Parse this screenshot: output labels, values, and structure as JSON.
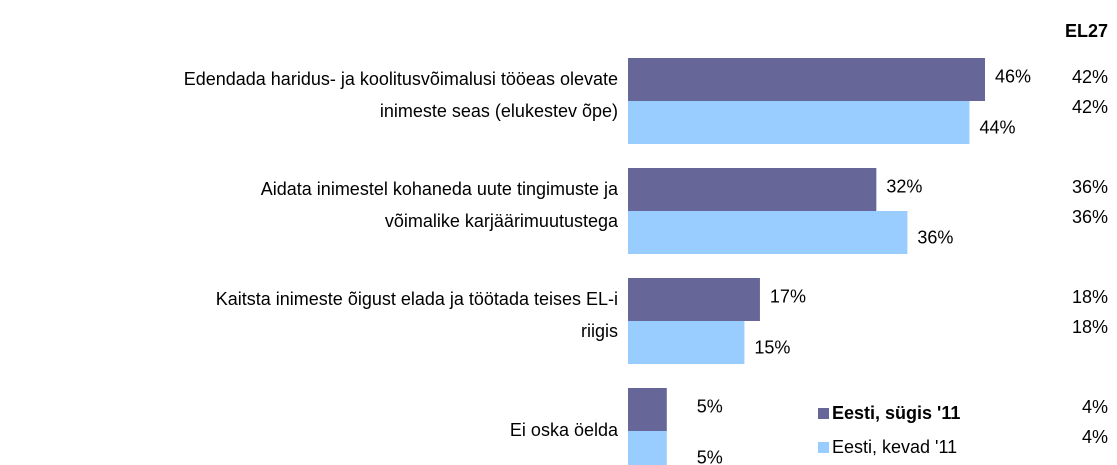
{
  "chart_data": {
    "type": "bar",
    "orientation": "horizontal",
    "categories": [
      [
        "Edendada haridus- ja koolitusvõimalusi tööeas olevate",
        "inimeste seas (elukestev õpe)"
      ],
      [
        "Aidata inimestel kohaneda uute tingimuste ja",
        "võimalike karjäärimuutustega"
      ],
      [
        "Kaitsta inimeste õigust elada ja töötada teises EL-i",
        "riigis"
      ],
      [
        "Ei oska öelda"
      ]
    ],
    "series": [
      {
        "name": "Eesti, sügis '11",
        "color": "#676699",
        "values": [
          46,
          32,
          17,
          5
        ],
        "value_labels": [
          "46%",
          "32%",
          "17%",
          "5%"
        ],
        "eu_values": [
          42,
          36,
          18,
          4
        ],
        "eu_value_labels": [
          "42%",
          "36%",
          "18%",
          "4%"
        ]
      },
      {
        "name": "Eesti, kevad '11",
        "color": "#99ccff",
        "values": [
          44,
          36,
          15,
          5
        ],
        "value_labels": [
          "44%",
          "36%",
          "15%",
          "5%"
        ],
        "eu_values": [
          42,
          36,
          18,
          4
        ],
        "eu_value_labels": [
          "42%",
          "36%",
          "18%",
          "4%"
        ]
      }
    ],
    "eu_label": "EL27"
  }
}
